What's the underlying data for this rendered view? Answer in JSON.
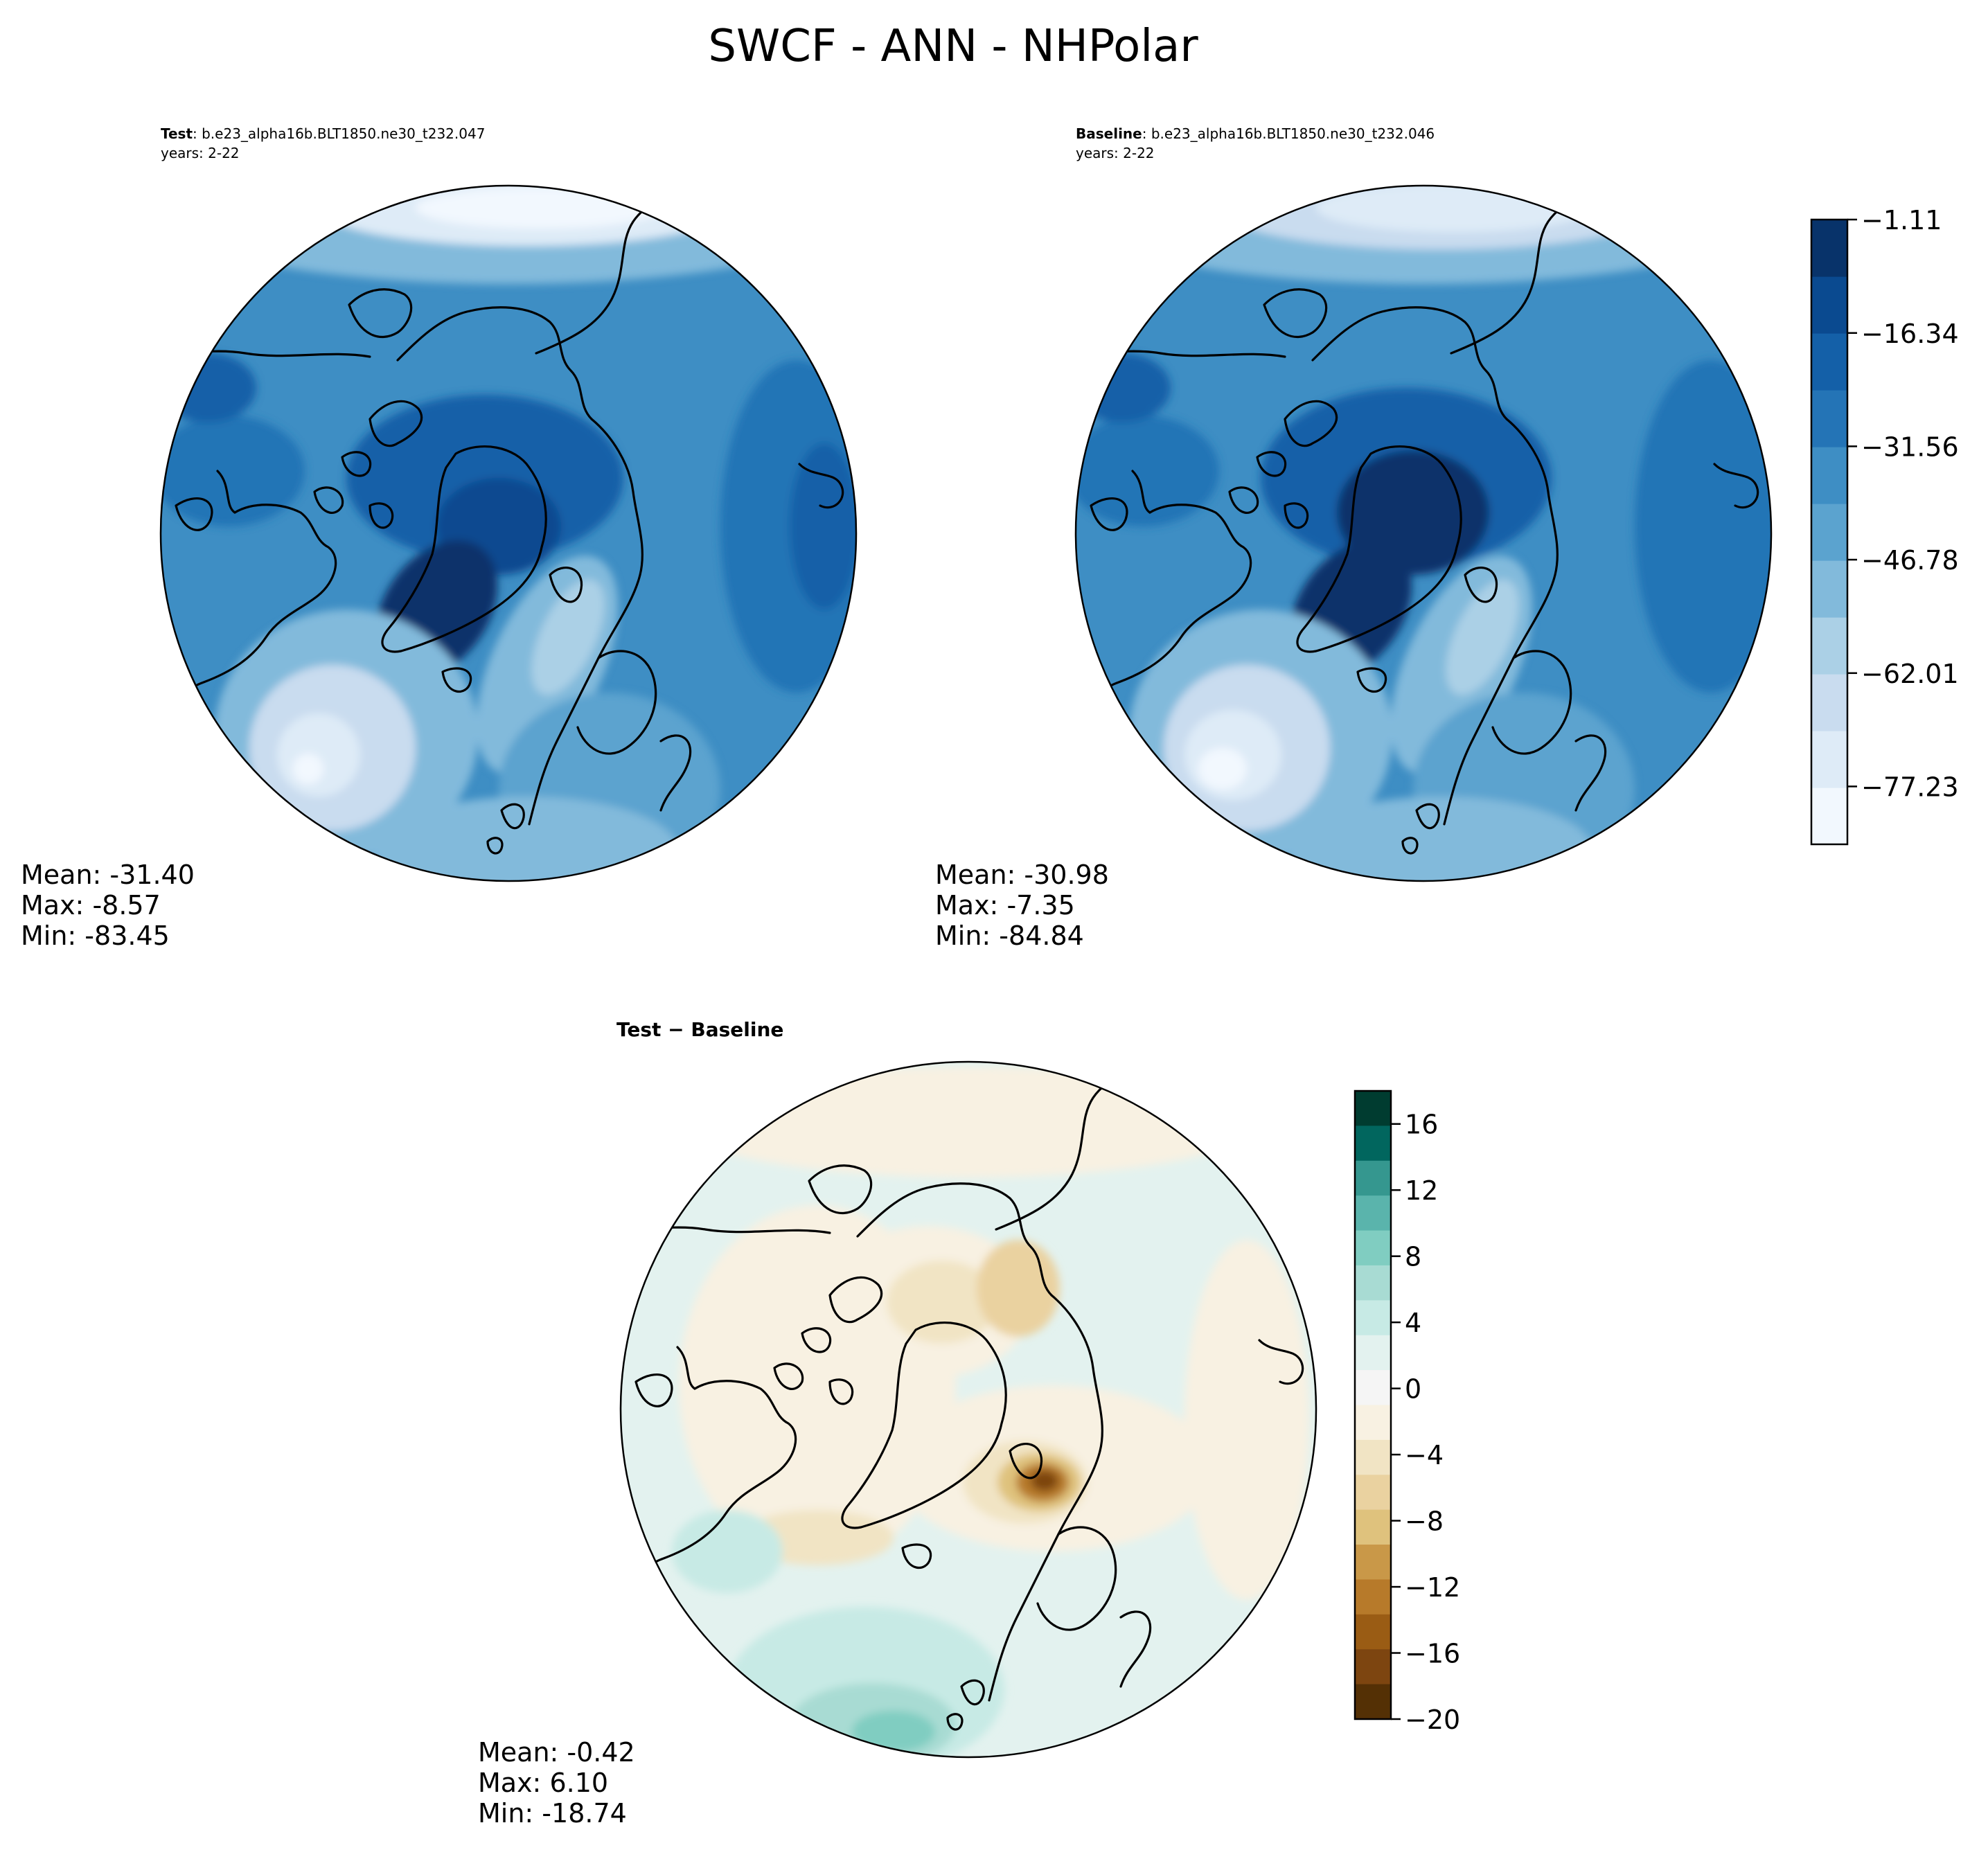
{
  "figure": {
    "title": "SWCF - ANN - NHPolar"
  },
  "panels": [
    {
      "id": "test",
      "label_bold": "Test",
      "label_rest": ": b.e23_alpha16b.BLT1850.ne30_t232.047",
      "years": "years: 2-22",
      "stats": {
        "mean": "Mean: -31.40",
        "max": "Max: -8.57",
        "min": "Min: -83.45"
      }
    },
    {
      "id": "baseline",
      "label_bold": "Baseline",
      "label_rest": ": b.e23_alpha16b.BLT1850.ne30_t232.046",
      "years": "years: 2-22",
      "stats": {
        "mean": "Mean: -30.98",
        "max": "Max: -7.35",
        "min": "Min: -84.84"
      }
    },
    {
      "id": "diff",
      "label": "Test − Baseline",
      "stats": {
        "mean": "Mean: -0.42",
        "max": "Max:  6.10",
        "min": "Min: -18.74"
      }
    }
  ],
  "chart_data": [
    {
      "type": "heatmap",
      "title": "SWCF - ANN - NHPolar",
      "projection": "north-polar-stereographic",
      "colorbar": {
        "colormap": "Blues_r",
        "levels_count": 11,
        "range": [
          -85.0,
          -1.11
        ],
        "tick_values": [
          -1.11,
          -16.34,
          -31.56,
          -46.78,
          -62.01,
          -77.23
        ],
        "tick_labels": [
          "−1.11",
          "−16.34",
          "−31.56",
          "−46.78",
          "−62.01",
          "−77.23"
        ],
        "colors": [
          "#f2f8fe",
          "#deebf7",
          "#c9dcef",
          "#abd0e6",
          "#82badb",
          "#5ba3cf",
          "#3e8ec4",
          "#2474b6",
          "#1460a8",
          "#0a4a90",
          "#08336a"
        ]
      },
      "series": [
        {
          "name": "Test",
          "mean": -31.4,
          "max": -8.57,
          "min": -83.45
        },
        {
          "name": "Baseline",
          "mean": -30.98,
          "max": -7.35,
          "min": -84.84
        }
      ]
    },
    {
      "type": "heatmap",
      "title": "Test − Baseline",
      "projection": "north-polar-stereographic",
      "colorbar": {
        "colormap": "BrBG",
        "range": [
          -20,
          18
        ],
        "tick_values": [
          16,
          12,
          8,
          4,
          0,
          -4,
          -8,
          -12,
          -16,
          -20
        ],
        "tick_labels": [
          "16",
          "12",
          "8",
          "4",
          "0",
          "−4",
          "−8",
          "−12",
          "−16",
          "−20"
        ],
        "colors": [
          "#003c30",
          "#01665e",
          "#35978f",
          "#5ab4ac",
          "#80cdc1",
          "#a8dbd3",
          "#c7eae5",
          "#e3f2ef",
          "#f5f5f5",
          "#f8f1e2",
          "#f1e4c4",
          "#ead2a0",
          "#dfc27d",
          "#c99848",
          "#b77a2a",
          "#9a5c14",
          "#7d4510",
          "#543005"
        ]
      },
      "series": [
        {
          "name": "Test − Baseline",
          "mean": -0.42,
          "max": 6.1,
          "min": -18.74
        }
      ]
    }
  ]
}
